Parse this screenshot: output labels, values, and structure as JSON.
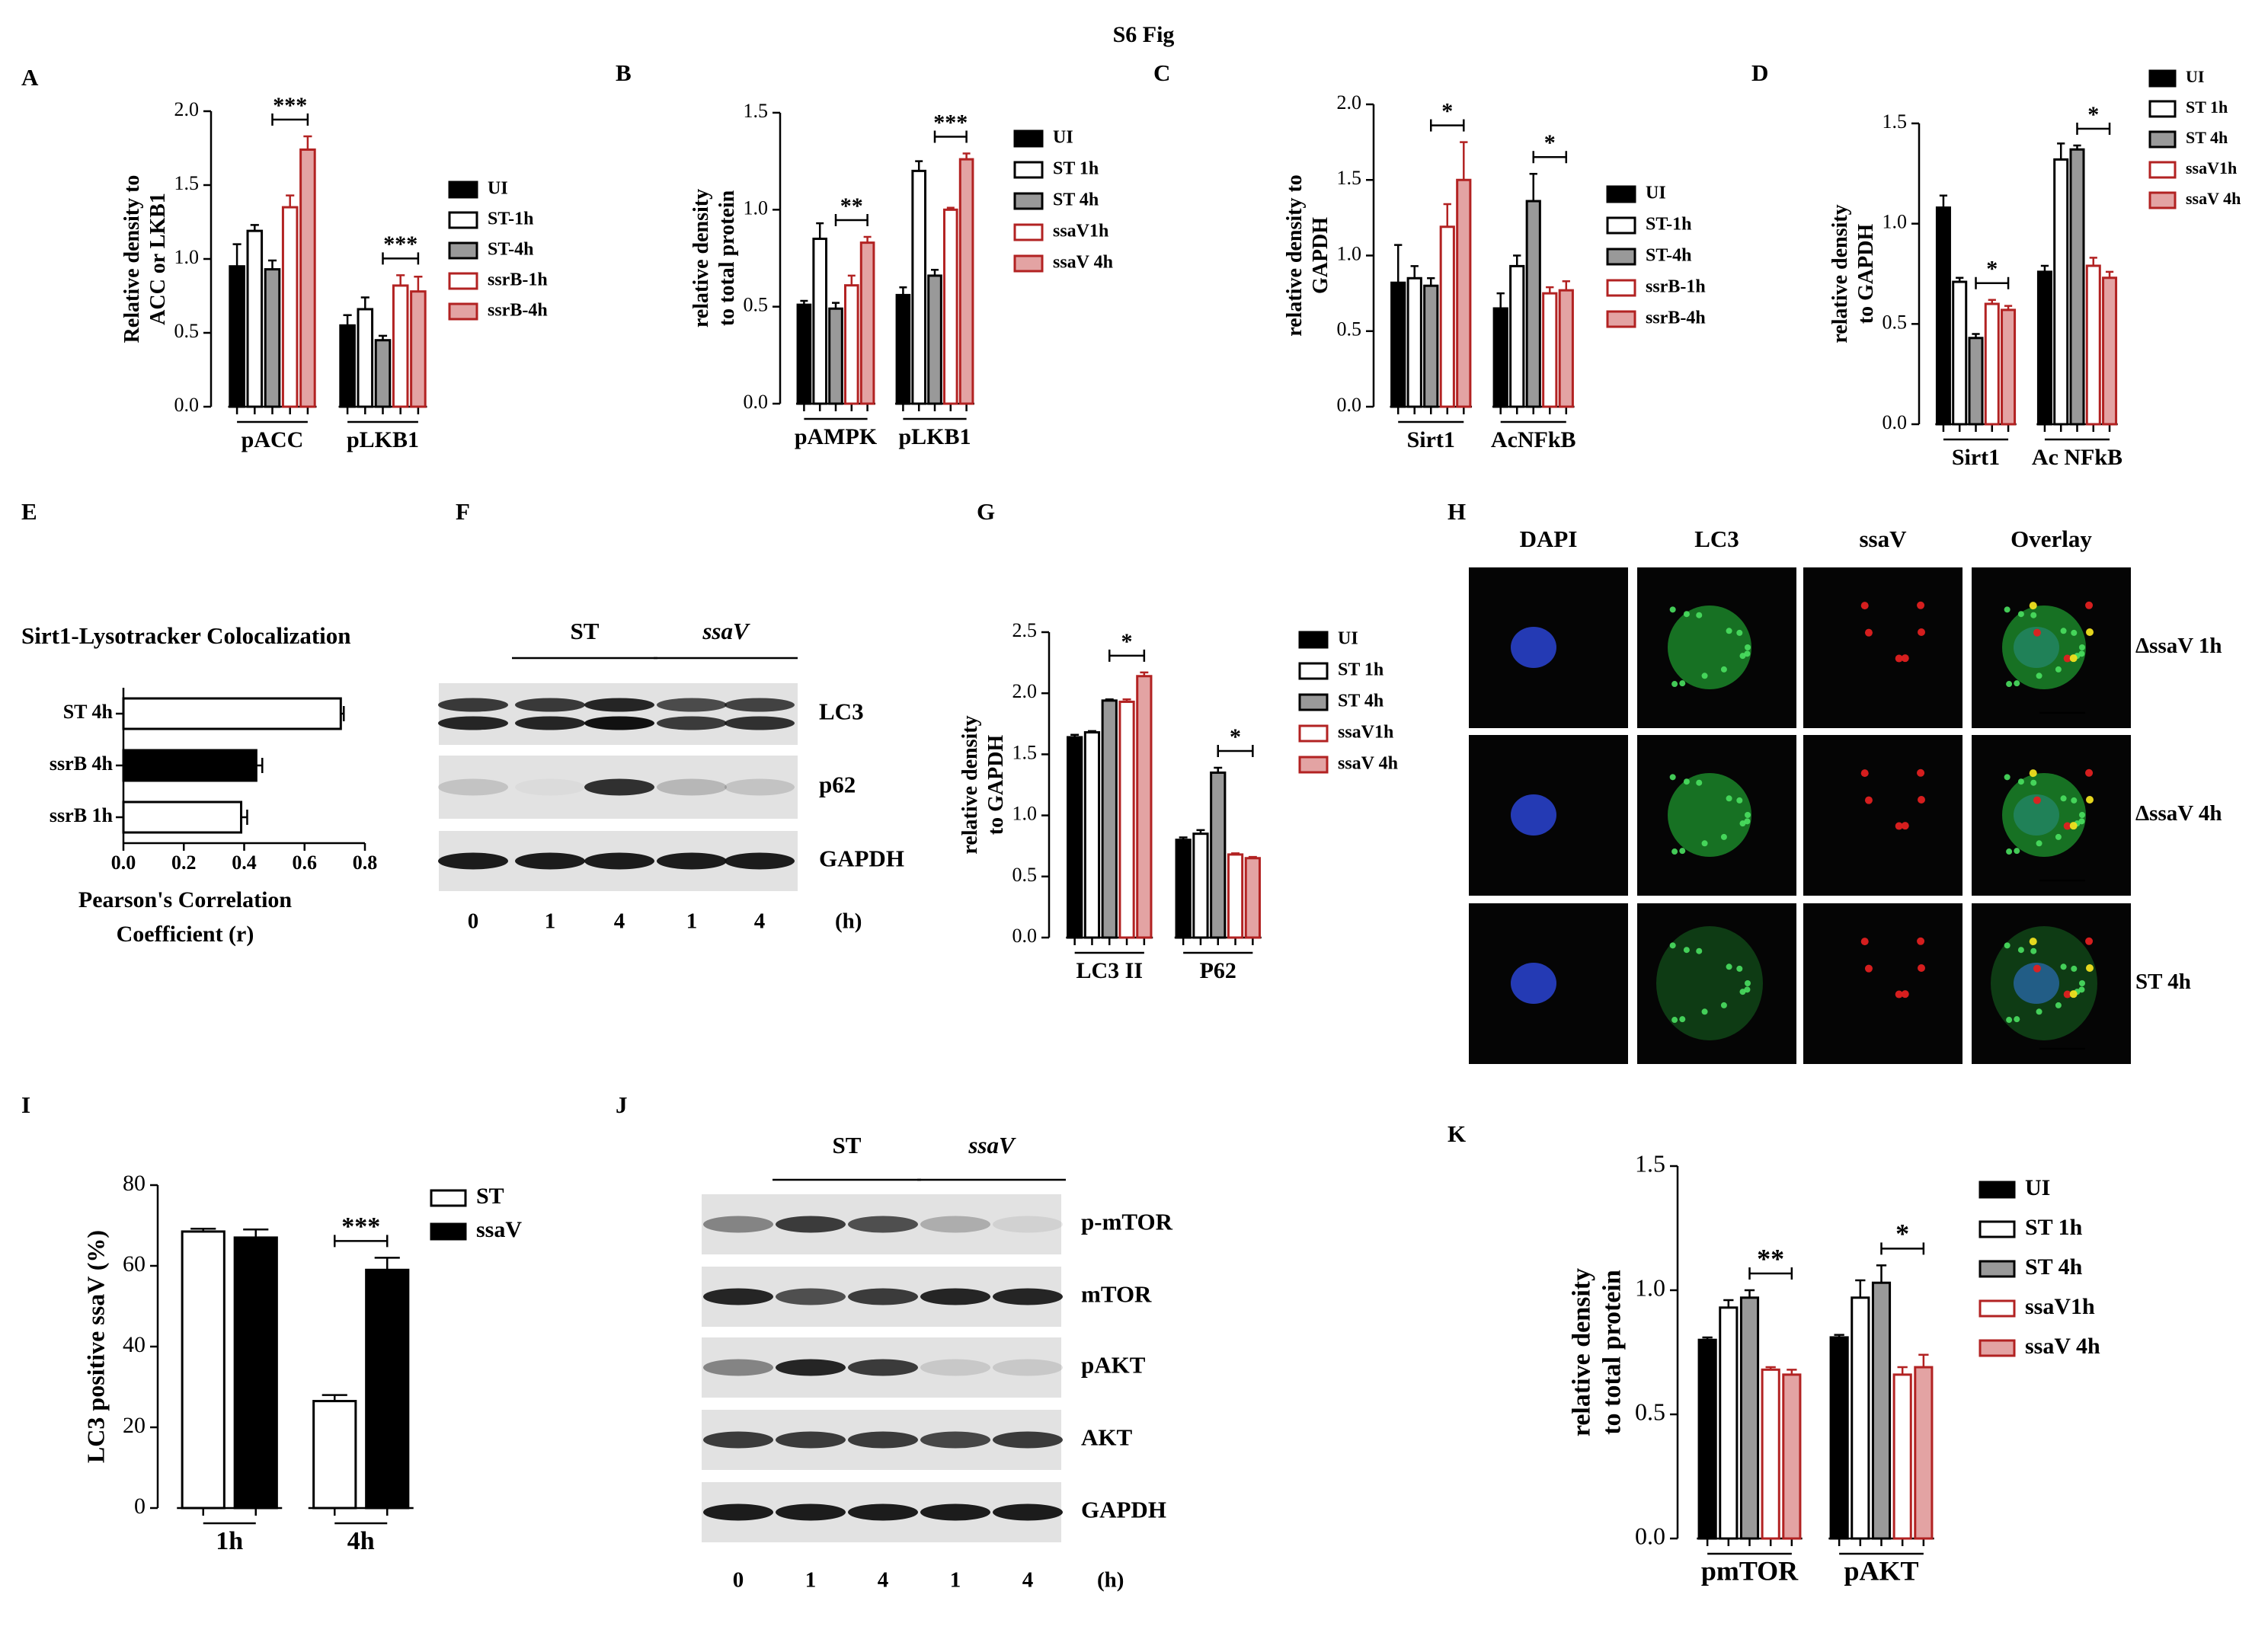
{
  "title": "S6 Fig",
  "chart_data": [
    {
      "panel": "A",
      "type": "bar",
      "ylabel": [
        "Relative density to",
        "ACC or LKB1"
      ],
      "categories": [
        "pACC",
        "pLKB1"
      ],
      "series": [
        {
          "name": "UI",
          "color": "#000000",
          "edge": "#000000",
          "values": [
            0.95,
            0.55
          ],
          "errors": [
            0.15,
            0.07
          ]
        },
        {
          "name": "ST-1h",
          "color": "#ffffff",
          "edge": "#000000",
          "values": [
            1.19,
            0.66
          ],
          "errors": [
            0.04,
            0.08
          ]
        },
        {
          "name": "ST-4h",
          "color": "#999999",
          "edge": "#000000",
          "values": [
            0.93,
            0.45
          ],
          "errors": [
            0.06,
            0.03
          ]
        },
        {
          "name": "ssrB-1h",
          "color": "#ffffff",
          "edge": "#b22222",
          "values": [
            1.35,
            0.82
          ],
          "errors": [
            0.08,
            0.07
          ]
        },
        {
          "name": "ssrB-4h",
          "color": "#e3a3a3",
          "edge": "#b22222",
          "values": [
            1.74,
            0.78
          ],
          "errors": [
            0.09,
            0.1
          ]
        }
      ],
      "ylim": [
        0,
        2
      ],
      "yticks": [
        {
          "value": 0,
          "label": "0.0"
        },
        0.5,
        {
          "value": 1,
          "label": "1.0"
        },
        1.5,
        {
          "value": 2,
          "label": "2.0"
        }
      ],
      "annotations": [
        {
          "text": "***",
          "category": "pACC",
          "from": "ST-4h",
          "to": "ssrB-4h"
        },
        {
          "text": "***",
          "category": "pLKB1",
          "from": "ST-4h",
          "to": "ssrB-4h"
        }
      ]
    },
    {
      "panel": "B",
      "type": "bar",
      "ylabel": [
        "relative density",
        "to total protein"
      ],
      "categories": [
        "pAMPK",
        "pLKB1"
      ],
      "series": [
        {
          "name": "UI",
          "color": "#000000",
          "edge": "#000000",
          "values": [
            0.51,
            0.56
          ],
          "errors": [
            0.02,
            0.04
          ]
        },
        {
          "name": "ST 1h",
          "color": "#ffffff",
          "edge": "#000000",
          "values": [
            0.85,
            1.2
          ],
          "errors": [
            0.08,
            0.05
          ]
        },
        {
          "name": "ST 4h",
          "color": "#999999",
          "edge": "#000000",
          "values": [
            0.49,
            0.66
          ],
          "errors": [
            0.03,
            0.03
          ]
        },
        {
          "name": "ssaV1h",
          "color": "#ffffff",
          "edge": "#b22222",
          "values": [
            0.61,
            1.0
          ],
          "errors": [
            0.05,
            0.01
          ]
        },
        {
          "name": "ssaV 4h",
          "color": "#e3a3a3",
          "edge": "#b22222",
          "values": [
            0.83,
            1.26
          ],
          "errors": [
            0.03,
            0.03
          ]
        }
      ],
      "ylim": [
        0,
        1.5
      ],
      "yticks": [
        {
          "value": 0,
          "label": "0.0"
        },
        0.5,
        {
          "value": 1,
          "label": "1.0"
        },
        1.5
      ],
      "annotations": [
        {
          "text": "**",
          "category": "pAMPK",
          "from": "ST 4h",
          "to": "ssaV 4h"
        },
        {
          "text": "***",
          "category": "pLKB1",
          "from": "ST 4h",
          "to": "ssaV 4h"
        }
      ]
    },
    {
      "panel": "C",
      "type": "bar",
      "ylabel": [
        "relative density to",
        "GAPDH"
      ],
      "categories": [
        "Sirt1",
        "AcNFkB"
      ],
      "series": [
        {
          "name": "UI",
          "color": "#000000",
          "edge": "#000000",
          "values": [
            0.82,
            0.65
          ],
          "errors": [
            0.25,
            0.1
          ]
        },
        {
          "name": "ST-1h",
          "color": "#ffffff",
          "edge": "#000000",
          "values": [
            0.85,
            0.93
          ],
          "errors": [
            0.08,
            0.07
          ]
        },
        {
          "name": "ST-4h",
          "color": "#999999",
          "edge": "#000000",
          "values": [
            0.8,
            1.36
          ],
          "errors": [
            0.05,
            0.18
          ]
        },
        {
          "name": "ssrB-1h",
          "color": "#ffffff",
          "edge": "#b22222",
          "values": [
            1.19,
            0.75
          ],
          "errors": [
            0.15,
            0.04
          ]
        },
        {
          "name": "ssrB-4h",
          "color": "#e3a3a3",
          "edge": "#b22222",
          "values": [
            1.5,
            0.77
          ],
          "errors": [
            0.25,
            0.06
          ]
        }
      ],
      "ylim": [
        0,
        2
      ],
      "yticks": [
        {
          "value": 0,
          "label": "0.0"
        },
        0.5,
        {
          "value": 1,
          "label": "1.0"
        },
        1.5,
        {
          "value": 2,
          "label": "2.0"
        }
      ],
      "annotations": [
        {
          "text": "*",
          "category": "Sirt1",
          "from": "ST-4h",
          "to": "ssrB-4h"
        },
        {
          "text": "*",
          "category": "AcNFkB",
          "from": "ST-4h",
          "to": "ssrB-4h"
        }
      ]
    },
    {
      "panel": "D",
      "type": "bar",
      "ylabel": [
        "relative density",
        "to GAPDH"
      ],
      "categories": [
        "Sirt1",
        "Ac NFkB"
      ],
      "series": [
        {
          "name": "UI",
          "color": "#000000",
          "edge": "#000000",
          "values": [
            1.08,
            0.76
          ],
          "errors": [
            0.06,
            0.03
          ]
        },
        {
          "name": "ST 1h",
          "color": "#ffffff",
          "edge": "#000000",
          "values": [
            0.71,
            1.32
          ],
          "errors": [
            0.02,
            0.08
          ]
        },
        {
          "name": "ST 4h",
          "color": "#999999",
          "edge": "#000000",
          "values": [
            0.43,
            1.37
          ],
          "errors": [
            0.02,
            0.02
          ]
        },
        {
          "name": "ssaV1h",
          "color": "#ffffff",
          "edge": "#b22222",
          "values": [
            0.6,
            0.79
          ],
          "errors": [
            0.02,
            0.04
          ]
        },
        {
          "name": "ssaV 4h",
          "color": "#e3a3a3",
          "edge": "#b22222",
          "values": [
            0.57,
            0.73
          ],
          "errors": [
            0.02,
            0.03
          ]
        }
      ],
      "ylim": [
        0,
        1.5
      ],
      "yticks": [
        {
          "value": 0,
          "label": "0.0"
        },
        0.5,
        {
          "value": 1,
          "label": "1.0"
        },
        1.5
      ],
      "annotations": [
        {
          "text": "*",
          "category": "Sirt1",
          "from": "ST 4h",
          "to": "ssaV 4h"
        },
        {
          "text": "*",
          "category": "Ac NFkB",
          "from": "ST 4h",
          "to": "ssaV 4h"
        }
      ]
    },
    {
      "panel": "E",
      "type": "hbar",
      "title": "Sirt1-Lysotracker Colocalization",
      "xlabel": [
        "Pearson's Correlation",
        "Coefficient (r)"
      ],
      "categories": [
        "ST 4h",
        "ssrB 4h",
        "ssrB 1h"
      ],
      "values": [
        0.72,
        0.44,
        0.39
      ],
      "errors": [
        0.01,
        0.02,
        0.02
      ],
      "colors": [
        "#ffffff",
        "#000000",
        "#ffffff"
      ],
      "xlim": [
        0,
        0.8
      ],
      "xticks": [
        {
          "value": 0,
          "label": "0.0"
        },
        0.2,
        0.4,
        0.6,
        0.8
      ]
    },
    {
      "panel": "G",
      "type": "bar",
      "ylabel": [
        "relative density",
        "to GAPDH"
      ],
      "categories": [
        "LC3 II",
        "P62"
      ],
      "series": [
        {
          "name": "UI",
          "color": "#000000",
          "edge": "#000000",
          "values": [
            1.64,
            0.8
          ],
          "errors": [
            0.02,
            0.02
          ]
        },
        {
          "name": "ST 1h",
          "color": "#ffffff",
          "edge": "#000000",
          "values": [
            1.68,
            0.85
          ],
          "errors": [
            0.01,
            0.03
          ]
        },
        {
          "name": "ST 4h",
          "color": "#999999",
          "edge": "#000000",
          "values": [
            1.94,
            1.35
          ],
          "errors": [
            0.01,
            0.04
          ]
        },
        {
          "name": "ssaV1h",
          "color": "#ffffff",
          "edge": "#b22222",
          "values": [
            1.93,
            0.68
          ],
          "errors": [
            0.02,
            0.01
          ]
        },
        {
          "name": "ssaV 4h",
          "color": "#e3a3a3",
          "edge": "#b22222",
          "values": [
            2.14,
            0.65
          ],
          "errors": [
            0.03,
            0.01
          ]
        }
      ],
      "ylim": [
        0,
        2.5
      ],
      "yticks": [
        {
          "value": 0,
          "label": "0.0"
        },
        0.5,
        {
          "value": 1,
          "label": "1.0"
        },
        1.5,
        {
          "value": 2,
          "label": "2.0"
        },
        2.5
      ],
      "annotations": [
        {
          "text": "*",
          "category": "LC3 II",
          "from": "ST 4h",
          "to": "ssaV 4h"
        },
        {
          "text": "*",
          "category": "P62",
          "from": "ST 4h",
          "to": "ssaV 4h"
        }
      ]
    },
    {
      "panel": "I",
      "type": "bar",
      "ylabel": [
        "LC3 positive ssaV (%)"
      ],
      "categories": [
        "1h",
        "4h"
      ],
      "series": [
        {
          "name": "ST",
          "color": "#ffffff",
          "edge": "#000000",
          "values": [
            68.5,
            26.5
          ],
          "errors": [
            0.7,
            1.5
          ]
        },
        {
          "name": "ssaV",
          "color": "#000000",
          "edge": "#000000",
          "values": [
            67,
            59
          ],
          "errors": [
            2,
            3
          ]
        }
      ],
      "ylim": [
        0,
        80
      ],
      "yticks": [
        0,
        20,
        40,
        60,
        80
      ],
      "annotations": [
        {
          "text": "***",
          "category": "4h",
          "from": "ST",
          "to": "ssaV"
        }
      ]
    },
    {
      "panel": "K",
      "type": "bar",
      "ylabel": [
        "relative density",
        "to total protein"
      ],
      "categories": [
        "pmTOR",
        "pAKT"
      ],
      "series": [
        {
          "name": "UI",
          "color": "#000000",
          "edge": "#000000",
          "values": [
            0.8,
            0.81
          ],
          "errors": [
            0.01,
            0.01
          ]
        },
        {
          "name": "ST 1h",
          "color": "#ffffff",
          "edge": "#000000",
          "values": [
            0.93,
            0.97
          ],
          "errors": [
            0.03,
            0.07
          ]
        },
        {
          "name": "ST 4h",
          "color": "#999999",
          "edge": "#000000",
          "values": [
            0.97,
            1.03
          ],
          "errors": [
            0.03,
            0.07
          ]
        },
        {
          "name": "ssaV1h",
          "color": "#ffffff",
          "edge": "#b22222",
          "values": [
            0.68,
            0.66
          ],
          "errors": [
            0.01,
            0.03
          ]
        },
        {
          "name": "ssaV 4h",
          "color": "#e3a3a3",
          "edge": "#b22222",
          "values": [
            0.66,
            0.69
          ],
          "errors": [
            0.02,
            0.05
          ]
        }
      ],
      "ylim": [
        0,
        1.5
      ],
      "yticks": [
        {
          "value": 0,
          "label": "0.0"
        },
        0.5,
        {
          "value": 1,
          "label": "1.0"
        },
        1.5
      ],
      "annotations": [
        {
          "text": "**",
          "category": "pmTOR",
          "from": "ST 4h",
          "to": "ssaV 4h"
        },
        {
          "text": "*",
          "category": "pAKT",
          "from": "ST 4h",
          "to": "ssaV 4h"
        }
      ]
    }
  ],
  "blots": [
    {
      "panel": "F",
      "groups": [
        "ST",
        "ssaV"
      ],
      "rows": [
        "LC3",
        "p62",
        "GAPDH"
      ],
      "lanes": [
        "0",
        "1",
        "4",
        "1",
        "4"
      ],
      "unit": "(h)"
    },
    {
      "panel": "J",
      "groups": [
        "ST",
        "ssaV"
      ],
      "rows": [
        "p-mTOR",
        "mTOR",
        "pAKT",
        "AKT",
        "GAPDH"
      ],
      "lanes": [
        "0",
        "1",
        "4",
        "1",
        "4"
      ],
      "unit": "(h)"
    }
  ],
  "microscopy": {
    "panel": "H",
    "columns": [
      {
        "label": "DAPI",
        "color": "#3346b8"
      },
      {
        "label": "LC3",
        "color": "#1c9a3c"
      },
      {
        "label": "ssaV",
        "color": "#d42020"
      },
      {
        "label": "Overlay",
        "color": "#e0a800"
      }
    ],
    "rows": [
      "ΔssaV 1h",
      "ΔssaV 4h",
      "ST 4h"
    ]
  }
}
